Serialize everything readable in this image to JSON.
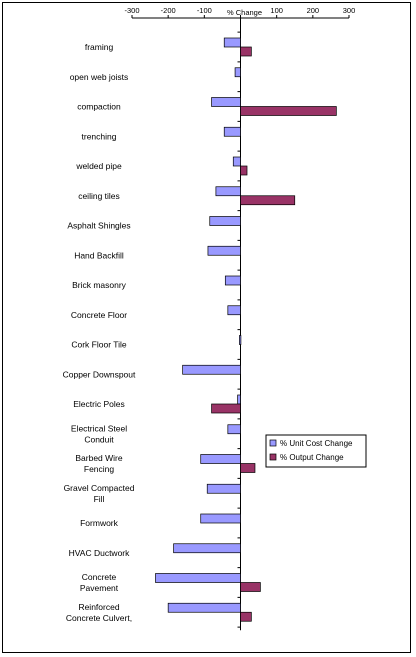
{
  "chart_data": {
    "type": "bar",
    "orientation": "horizontal",
    "title": "% Change",
    "xlim": [
      -300,
      300
    ],
    "xticks": [
      -300,
      -200,
      -100,
      0,
      100,
      200,
      300
    ],
    "tick_labels": [
      "-300",
      "-200",
      "-100",
      "0",
      "100",
      "200",
      "300"
    ],
    "grid": false,
    "legend_position": "right",
    "categories": [
      [
        "framing"
      ],
      [
        "open web joists"
      ],
      [
        "compaction"
      ],
      [
        "trenching"
      ],
      [
        "welded pipe"
      ],
      [
        "ceiling tiles"
      ],
      [
        "Asphalt Shingles"
      ],
      [
        "Hand Backfill"
      ],
      [
        "Brick masonry"
      ],
      [
        "Concrete Floor"
      ],
      [
        "Cork Floor Tile"
      ],
      [
        "Copper Downspout"
      ],
      [
        "Electric Poles"
      ],
      [
        "Electrical Steel",
        "Conduit"
      ],
      [
        "Barbed Wire",
        "Fencing"
      ],
      [
        "Gravel Compacted",
        "Fill"
      ],
      [
        "Formwork"
      ],
      [
        "HVAC Ductwork"
      ],
      [
        "Concrete",
        "Pavement"
      ],
      [
        "Reinforced",
        "Concrete Culvert,"
      ]
    ],
    "series": [
      {
        "name": "% Unit Cost Change",
        "color": "#9999ff",
        "values": [
          -45,
          -15,
          -80,
          -45,
          -20,
          -68,
          -85,
          -90,
          -42,
          -35,
          -3,
          -160,
          -8,
          -35,
          -110,
          -92,
          -110,
          -185,
          -235,
          -200
        ]
      },
      {
        "name": "% Output Change",
        "color": "#993366",
        "values": [
          30,
          0,
          265,
          0,
          18,
          150,
          0,
          0,
          0,
          0,
          0,
          0,
          -80,
          0,
          40,
          0,
          0,
          0,
          55,
          30
        ]
      }
    ]
  }
}
